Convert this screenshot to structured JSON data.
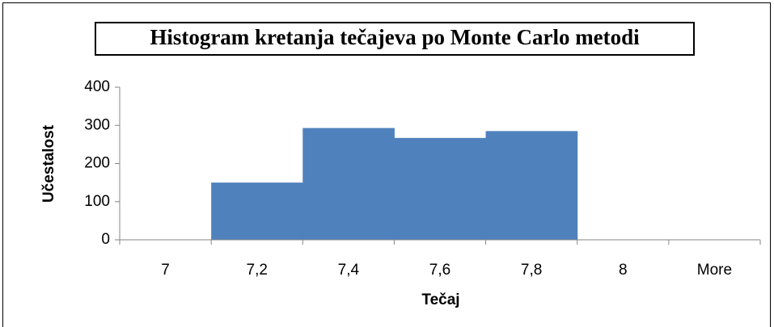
{
  "chart_data": {
    "type": "bar",
    "title": "Histogram kretanja tečajeva po Monte Carlo metodi",
    "x_label": "Tečaj",
    "y_label": "Učestalost",
    "categories": [
      "7",
      "7,2",
      "7,4",
      "7,6",
      "7,8",
      "8",
      "More"
    ],
    "values": [
      0,
      150,
      293,
      267,
      285,
      0,
      0
    ],
    "color": "#4f81bd",
    "ylim": [
      0,
      400
    ],
    "yticks": [
      0,
      100,
      200,
      300,
      400
    ],
    "grid": false
  }
}
